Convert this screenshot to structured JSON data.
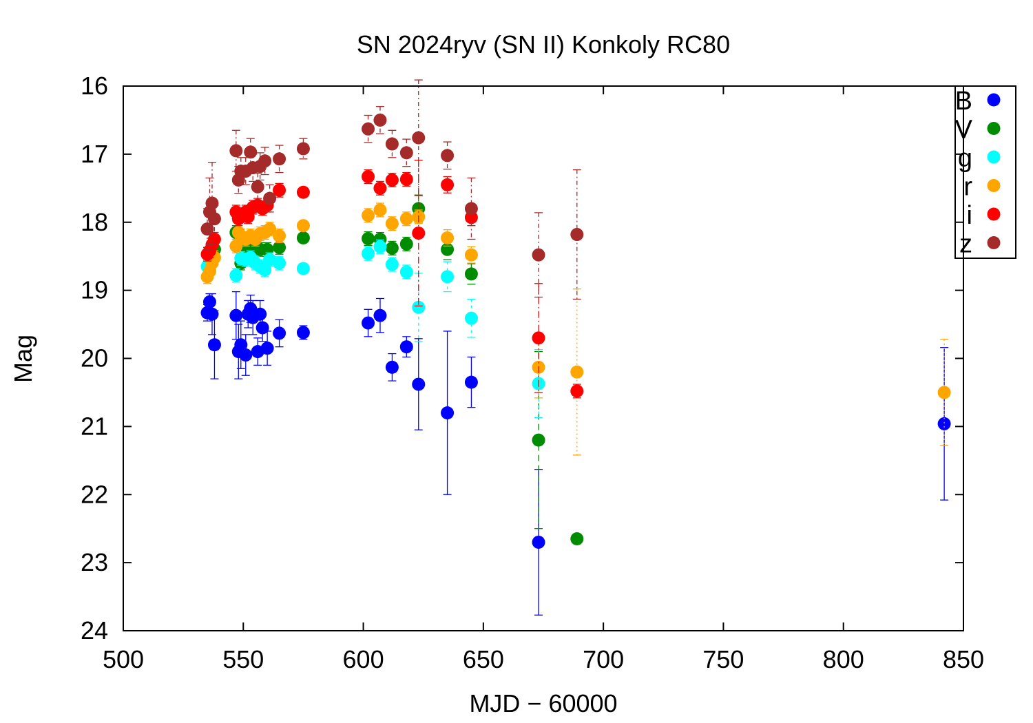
{
  "chart_data": {
    "type": "scatter",
    "title": "SN 2024ryv (SN II) Konkoly RC80",
    "xlabel": "MJD − 60000",
    "ylabel": "Mag",
    "xlim": [
      500,
      850
    ],
    "ylim": [
      24,
      16
    ],
    "y_inverted": true,
    "x_ticks": [
      500,
      550,
      600,
      650,
      700,
      750,
      800,
      850
    ],
    "y_ticks": [
      16,
      17,
      18,
      19,
      20,
      21,
      22,
      23,
      24
    ],
    "grid": false,
    "legend_position": "top-right",
    "error_bars": true,
    "series": [
      {
        "name": "B",
        "color": "#0000ff",
        "x": [
          535,
          536,
          537,
          538,
          547,
          548,
          549,
          551,
          552,
          553,
          554,
          556,
          557,
          558,
          560,
          565,
          575,
          602,
          607,
          612,
          618,
          623,
          635,
          645,
          673,
          842
        ],
        "y": [
          19.33,
          19.17,
          19.35,
          19.8,
          19.37,
          19.9,
          19.8,
          19.95,
          19.35,
          19.27,
          19.4,
          19.9,
          19.35,
          19.55,
          19.85,
          19.63,
          19.62,
          19.48,
          19.37,
          20.13,
          19.83,
          20.38,
          20.8,
          20.35,
          22.7,
          20.96
        ],
        "err": [
          0.12,
          0.12,
          0.3,
          0.5,
          0.35,
          0.4,
          0.35,
          0.3,
          0.2,
          0.2,
          0.25,
          0.2,
          0.2,
          0.2,
          0.25,
          0.2,
          0.1,
          0.2,
          0.25,
          0.2,
          0.15,
          0.67,
          1.2,
          0.37,
          1.07,
          1.12
        ]
      },
      {
        "name": "V",
        "color": "#008c00",
        "x": [
          536,
          538,
          547,
          549,
          551,
          553,
          555,
          557,
          560,
          565,
          575,
          602,
          607,
          612,
          618,
          623,
          635,
          645,
          673,
          689
        ],
        "y": [
          18.65,
          18.4,
          18.15,
          18.6,
          18.35,
          18.3,
          18.38,
          18.4,
          18.4,
          18.37,
          18.23,
          18.24,
          18.25,
          18.38,
          18.32,
          17.8,
          18.4,
          18.76,
          21.2,
          22.65
        ],
        "err": [
          0.1,
          0.1,
          0.1,
          0.1,
          0.1,
          0.1,
          0.1,
          0.1,
          0.1,
          0.1,
          0.05,
          0.1,
          0.1,
          0.1,
          0.1,
          0.2,
          0.15,
          0.15,
          1.3,
          0.05
        ]
      },
      {
        "name": "g",
        "color": "#00ffff",
        "x": [
          535,
          547,
          549,
          551,
          553,
          555,
          557,
          559,
          561,
          565,
          575,
          602,
          607,
          612,
          618,
          623,
          635,
          645,
          673
        ],
        "y": [
          18.65,
          18.78,
          18.53,
          18.55,
          18.52,
          18.6,
          18.65,
          18.7,
          18.55,
          18.6,
          18.68,
          18.46,
          18.36,
          18.62,
          18.73,
          19.25,
          18.8,
          19.41,
          20.37
        ],
        "err": [
          0.1,
          0.1,
          0.1,
          0.1,
          0.1,
          0.1,
          0.1,
          0.1,
          0.1,
          0.1,
          0.05,
          0.1,
          0.1,
          0.1,
          0.1,
          0.5,
          0.22,
          0.28,
          0.5
        ]
      },
      {
        "name": "r",
        "color": "#ffa500",
        "x": [
          535,
          536,
          537,
          538,
          547,
          548,
          549,
          551,
          553,
          555,
          557,
          559,
          561,
          565,
          575,
          602,
          607,
          612,
          618,
          623,
          635,
          645,
          673,
          689,
          842
        ],
        "y": [
          18.8,
          18.72,
          18.6,
          18.52,
          18.35,
          18.15,
          18.2,
          18.25,
          18.2,
          18.25,
          18.17,
          18.15,
          18.1,
          18.2,
          18.05,
          17.9,
          17.82,
          18.02,
          17.95,
          17.92,
          18.23,
          18.48,
          20.13,
          20.2,
          20.5
        ],
        "err": [
          0.1,
          0.1,
          0.1,
          0.1,
          0.1,
          0.1,
          0.1,
          0.1,
          0.1,
          0.1,
          0.1,
          0.1,
          0.1,
          0.1,
          0.05,
          0.1,
          0.1,
          0.1,
          0.1,
          0.1,
          0.12,
          0.12,
          0.45,
          1.22,
          0.78
        ]
      },
      {
        "name": "i",
        "color": "#ff0000",
        "x": [
          535,
          536,
          537,
          538,
          547,
          548,
          549,
          551,
          552,
          554,
          556,
          558,
          560,
          565,
          575,
          602,
          607,
          612,
          618,
          623,
          635,
          645,
          673,
          689
        ],
        "y": [
          18.47,
          18.42,
          18.33,
          18.25,
          17.85,
          17.95,
          17.9,
          17.85,
          17.92,
          17.78,
          17.75,
          17.8,
          17.75,
          17.53,
          17.56,
          17.33,
          17.5,
          17.38,
          17.37,
          18.16,
          17.45,
          17.93,
          19.7,
          20.48
        ],
        "err": [
          0.1,
          0.1,
          0.1,
          0.1,
          0.1,
          0.1,
          0.1,
          0.1,
          0.1,
          0.1,
          0.1,
          0.1,
          0.1,
          0.1,
          0.05,
          0.1,
          0.1,
          0.1,
          0.1,
          1.07,
          0.12,
          0.12,
          0.8,
          0.1
        ]
      },
      {
        "name": "z",
        "color": "#a52a2a",
        "x": [
          535,
          536,
          537,
          538,
          547,
          548,
          549,
          551,
          553,
          554,
          556,
          557,
          559,
          561,
          565,
          575,
          602,
          607,
          612,
          618,
          623,
          635,
          645,
          673,
          689
        ],
        "y": [
          18.1,
          17.85,
          17.72,
          17.95,
          16.95,
          17.38,
          17.25,
          17.25,
          16.97,
          17.2,
          17.48,
          17.18,
          17.1,
          17.65,
          17.07,
          16.92,
          16.63,
          16.5,
          16.85,
          16.98,
          16.76,
          17.02,
          17.8,
          18.48,
          18.18
        ],
        "err": [
          0.3,
          0.5,
          0.6,
          0.2,
          0.3,
          0.2,
          0.2,
          0.2,
          0.2,
          0.2,
          0.2,
          0.2,
          0.2,
          0.2,
          0.2,
          0.15,
          0.2,
          0.2,
          0.2,
          0.2,
          0.85,
          0.2,
          0.45,
          0.62,
          0.95
        ]
      }
    ]
  }
}
